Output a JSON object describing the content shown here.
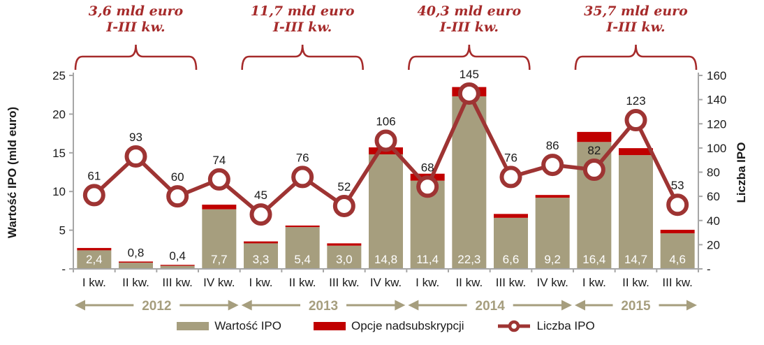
{
  "colors": {
    "bar_tan": "#A69E7E",
    "overallocation_red": "#C00000",
    "line_dark_red": "#9E3433",
    "annotation_red": "#A62B2B",
    "axis_gray": "#A6A6A6",
    "text": "#1A1A1A",
    "bar_label_white": "#FFFFFF"
  },
  "axes": {
    "left_title": "Wartość IPO (mld euro)",
    "right_title": "Liczba IPO"
  },
  "legend": {
    "items": [
      {
        "label": "Wartość IPO",
        "swatch": "bar-tan"
      },
      {
        "label": "Opcje nadsubskrypcji",
        "swatch": "bar-red"
      },
      {
        "label": "Liczba IPO",
        "swatch": "line-marker"
      }
    ]
  },
  "annotations": [
    {
      "line1": "3,6 mld euro",
      "line2": "I-III kw.",
      "slots": [
        0,
        2
      ]
    },
    {
      "line1": "11,7 mld euro",
      "line2": "I-III kw.",
      "slots": [
        4,
        6
      ]
    },
    {
      "line1": "40,3 mld euro",
      "line2": "I-III kw.",
      "slots": [
        8,
        10
      ]
    },
    {
      "line1": "35,7 mld euro",
      "line2": "I-III kw.",
      "slots": [
        12,
        14
      ]
    }
  ],
  "years": [
    {
      "label": "2012",
      "slots": [
        0,
        3
      ]
    },
    {
      "label": "2013",
      "slots": [
        4,
        7
      ]
    },
    {
      "label": "2014",
      "slots": [
        8,
        11
      ]
    },
    {
      "label": "2015",
      "slots": [
        12,
        14
      ]
    }
  ],
  "chart_data": {
    "type": "bar",
    "subtype": "stacked bars with secondary-axis line (combo)",
    "categories": [
      "I kw.",
      "II kw.",
      "III kw.",
      "IV kw.",
      "I kw.",
      "II kw.",
      "III kw.",
      "IV kw.",
      "I kw.",
      "II kw.",
      "III kw.",
      "IV kw.",
      "I kw.",
      "II kw.",
      "III kw."
    ],
    "series": [
      {
        "name": "Wartość IPO",
        "render": "stacked-bar",
        "axis": "left",
        "values": [
          2.4,
          0.8,
          0.4,
          7.7,
          3.3,
          5.4,
          3.0,
          14.8,
          11.4,
          22.3,
          6.6,
          9.2,
          16.4,
          14.7,
          4.6
        ],
        "labels": [
          "2,4",
          "0,8",
          "0,4",
          "7,7",
          "3,3",
          "5,4",
          "3,0",
          "14,8",
          "11,4",
          "22,3",
          "6,6",
          "9,2",
          "16,4",
          "14,7",
          "4,6"
        ]
      },
      {
        "name": "Opcje nadsubskrypcji",
        "render": "stacked-bar",
        "axis": "left",
        "values": [
          0.3,
          0.15,
          0.12,
          0.6,
          0.25,
          0.2,
          0.3,
          0.9,
          0.9,
          1.2,
          0.5,
          0.35,
          1.3,
          0.9,
          0.45
        ]
      },
      {
        "name": "Liczba IPO",
        "render": "line",
        "axis": "right",
        "values": [
          61,
          93,
          60,
          74,
          45,
          76,
          52,
          106,
          68,
          145,
          76,
          86,
          82,
          123,
          53
        ],
        "labels": [
          "61",
          "93",
          "60",
          "74",
          "45",
          "76",
          "52",
          "106",
          "68",
          "145",
          "76",
          "86",
          "82",
          "123",
          "53"
        ]
      }
    ],
    "left_axis": {
      "label": "Wartość IPO (mld euro)",
      "range": [
        0,
        25
      ],
      "tick_labels": [
        "-",
        "5",
        "10",
        "15",
        "20",
        "25"
      ]
    },
    "right_axis": {
      "label": "Liczba IPO",
      "range": [
        0,
        160
      ],
      "tick_labels": [
        "-",
        "20",
        "40",
        "60",
        "80",
        "100",
        "120",
        "140",
        "160"
      ]
    },
    "grid": false,
    "legend_position": "bottom"
  }
}
